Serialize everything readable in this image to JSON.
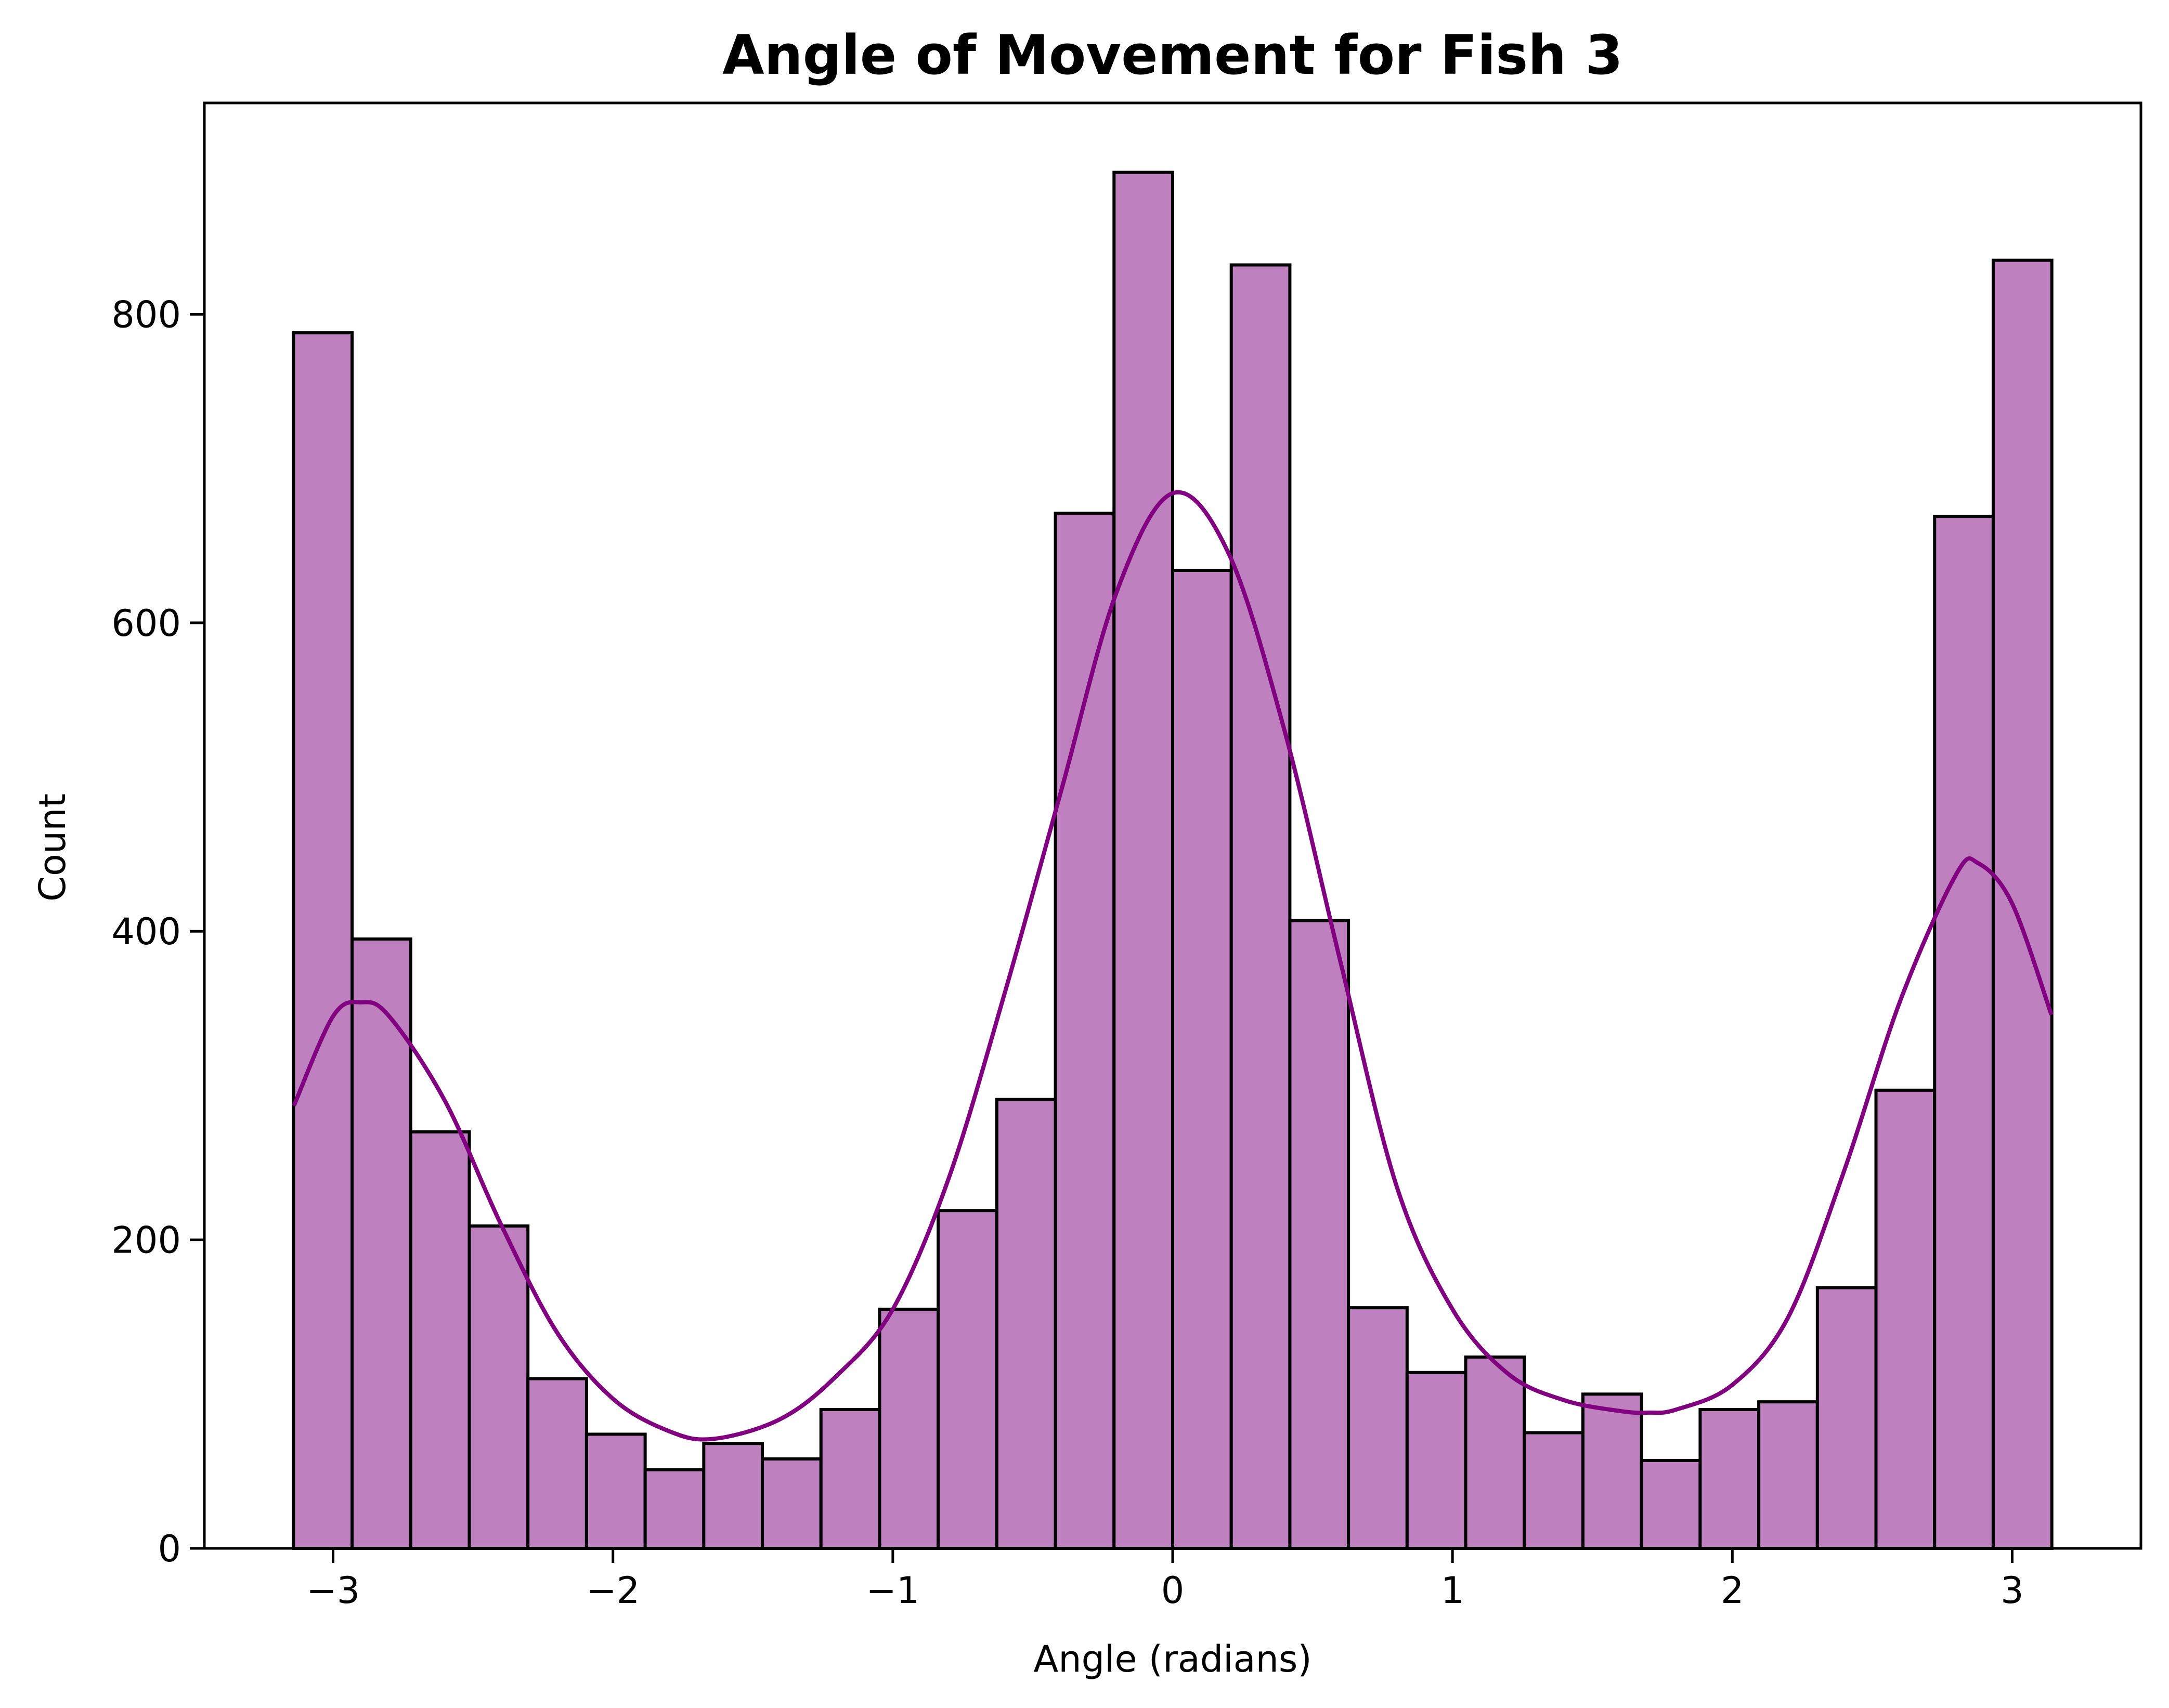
{
  "chart_data": {
    "type": "bar",
    "title": "Angle of Movement for Fish 3",
    "xlabel": "Angle (radians)",
    "ylabel": "Count",
    "xlim": [
      -3.46,
      3.46
    ],
    "ylim": [
      0,
      937
    ],
    "x_ticks": [
      -3,
      -2,
      -1,
      0,
      1,
      2,
      3
    ],
    "x_tick_labels": [
      "−3",
      "−2",
      "−1",
      "0",
      "1",
      "2",
      "3"
    ],
    "y_ticks": [
      0,
      200,
      400,
      600,
      800
    ],
    "y_tick_labels": [
      "0",
      "200",
      "400",
      "600",
      "800"
    ],
    "bins": {
      "start": -3.1416,
      "end": 3.1416,
      "count": 30
    },
    "values": [
      788,
      395,
      270,
      209,
      110,
      74,
      51,
      68,
      58,
      90,
      155,
      219,
      291,
      671,
      892,
      634,
      832,
      407,
      156,
      114,
      124,
      75,
      100,
      57,
      90,
      95,
      169,
      297,
      669,
      835
    ],
    "kde": {
      "x": [
        -3.14,
        -3.0,
        -2.9,
        -2.8,
        -2.6,
        -2.4,
        -2.2,
        -2.0,
        -1.8,
        -1.64,
        -1.4,
        -1.2,
        -1.0,
        -0.8,
        -0.6,
        -0.4,
        -0.2,
        0.0,
        0.2,
        0.4,
        0.6,
        0.8,
        1.0,
        1.2,
        1.4,
        1.6,
        1.7,
        1.8,
        2.0,
        2.2,
        2.4,
        2.6,
        2.8,
        2.88,
        3.0,
        3.14
      ],
      "y": [
        287,
        345,
        354,
        345,
        290,
        210,
        140,
        97,
        76,
        71,
        84,
        112,
        155,
        240,
        360,
        490,
        620,
        684,
        645,
        530,
        380,
        235,
        155,
        113,
        96,
        89,
        88,
        90,
        106,
        150,
        245,
        355,
        437,
        444,
        418,
        346
      ]
    },
    "bar_fill": "#bf80bf",
    "bar_edge": "#000000",
    "kde_color": "#800080",
    "grid": false,
    "legend": "none"
  }
}
